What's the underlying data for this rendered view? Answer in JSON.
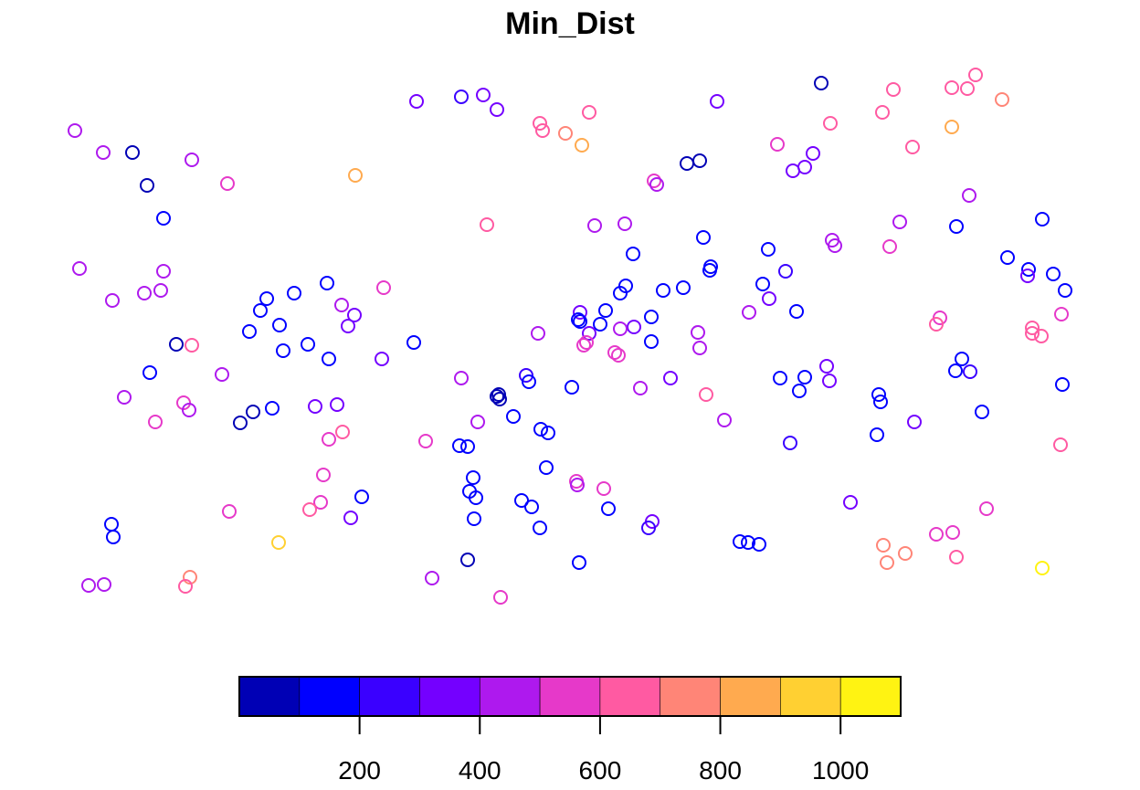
{
  "chart_data": {
    "type": "scatter",
    "title": "Min_Dist",
    "color_scale": {
      "breaks": [
        0,
        100,
        200,
        300,
        400,
        500,
        600,
        700,
        800,
        900,
        1000,
        1100
      ],
      "colors": [
        "#0000B5",
        "#0000FF",
        "#3A00FF",
        "#7400FF",
        "#AE19EE",
        "#E639C9",
        "#FF5AA2",
        "#FF8577",
        "#FFAA4F",
        "#FFD032",
        "#FFF312"
      ],
      "tick_values": [
        200,
        400,
        600,
        800,
        1000
      ],
      "tick_labels": [
        "200",
        "400",
        "600",
        "800",
        "1000"
      ],
      "legend_position": "bottom"
    },
    "points": [
      [
        82,
        143,
        480
      ],
      [
        113,
        167,
        420
      ],
      [
        145,
        167,
        60
      ],
      [
        161,
        203,
        80
      ],
      [
        210,
        175,
        470
      ],
      [
        249,
        201,
        500
      ],
      [
        179,
        239,
        150
      ],
      [
        389,
        192,
        880
      ],
      [
        456,
        111,
        380
      ],
      [
        505,
        106,
        230
      ],
      [
        529,
        104,
        360
      ],
      [
        544,
        120,
        300
      ],
      [
        591,
        135,
        620
      ],
      [
        594,
        143,
        610
      ],
      [
        645,
        123,
        620
      ],
      [
        619,
        146,
        760
      ],
      [
        637,
        159,
        840
      ],
      [
        533,
        246,
        600
      ],
      [
        651,
        247,
        450
      ],
      [
        684,
        245,
        460
      ],
      [
        785,
        111,
        330
      ],
      [
        752,
        179,
        80
      ],
      [
        766,
        176,
        60
      ],
      [
        716,
        198,
        520
      ],
      [
        719,
        202,
        460
      ],
      [
        693,
        278,
        180
      ],
      [
        770,
        260,
        160
      ],
      [
        778,
        292,
        140
      ],
      [
        777,
        296,
        110
      ],
      [
        748,
        315,
        150
      ],
      [
        726,
        318,
        150
      ],
      [
        685,
        313,
        150
      ],
      [
        679,
        321,
        120
      ],
      [
        663,
        340,
        150
      ],
      [
        635,
        342,
        350
      ],
      [
        633,
        350,
        140
      ],
      [
        635,
        352,
        180
      ],
      [
        657,
        355,
        190
      ],
      [
        645,
        365,
        330
      ],
      [
        642,
        375,
        520
      ],
      [
        639,
        378,
        500
      ],
      [
        589,
        365,
        460
      ],
      [
        694,
        358,
        350
      ],
      [
        679,
        360,
        400
      ],
      [
        713,
        347,
        180
      ],
      [
        713,
        374,
        180
      ],
      [
        764,
        364,
        400
      ],
      [
        766,
        381,
        440
      ],
      [
        673,
        386,
        560
      ],
      [
        677,
        389,
        540
      ],
      [
        734,
        414,
        370
      ],
      [
        701,
        425,
        450
      ],
      [
        773,
        432,
        640
      ],
      [
        793,
        460,
        480
      ],
      [
        576,
        411,
        220
      ],
      [
        579,
        418,
        160
      ],
      [
        505,
        414,
        410
      ],
      [
        626,
        424,
        180
      ],
      [
        546,
        432,
        70
      ],
      [
        544,
        434,
        80
      ],
      [
        547,
        437,
        60
      ],
      [
        562,
        456,
        130
      ],
      [
        523,
        462,
        410
      ],
      [
        592,
        470,
        160
      ],
      [
        600,
        474,
        150
      ],
      [
        466,
        483,
        570
      ],
      [
        503,
        488,
        140
      ],
      [
        512,
        489,
        170
      ],
      [
        598,
        512,
        160
      ],
      [
        518,
        523,
        130
      ],
      [
        514,
        538,
        120
      ],
      [
        521,
        545,
        110
      ],
      [
        571,
        548,
        150
      ],
      [
        582,
        555,
        180
      ],
      [
        631,
        527,
        550
      ],
      [
        632,
        531,
        490
      ],
      [
        661,
        535,
        510
      ],
      [
        666,
        557,
        150
      ],
      [
        714,
        571,
        300
      ],
      [
        710,
        578,
        250
      ],
      [
        591,
        578,
        190
      ],
      [
        519,
        568,
        170
      ],
      [
        634,
        616,
        120
      ],
      [
        512,
        613,
        80
      ],
      [
        473,
        633,
        430
      ],
      [
        548,
        654,
        510
      ],
      [
        851,
        158,
        580
      ],
      [
        909,
        135,
        600
      ],
      [
        868,
        187,
        390
      ],
      [
        881,
        183,
        360
      ],
      [
        890,
        168,
        390
      ],
      [
        899,
        91,
        70
      ],
      [
        841,
        273,
        170
      ],
      [
        860,
        297,
        200
      ],
      [
        835,
        311,
        190
      ],
      [
        842,
        327,
        300
      ],
      [
        820,
        342,
        480
      ],
      [
        872,
        341,
        150
      ],
      [
        911,
        263,
        410
      ],
      [
        914,
        269,
        470
      ],
      [
        974,
        270,
        530
      ],
      [
        985,
        243,
        490
      ],
      [
        966,
        123,
        640
      ],
      [
        978,
        98,
        670
      ],
      [
        999,
        161,
        600
      ],
      [
        1042,
        96,
        690
      ],
      [
        1059,
        97,
        680
      ],
      [
        1068,
        82,
        640
      ],
      [
        1097,
        109,
        790
      ],
      [
        1042,
        139,
        840
      ],
      [
        1061,
        214,
        410
      ],
      [
        1047,
        248,
        150
      ],
      [
        1141,
        240,
        130
      ],
      [
        1103,
        282,
        170
      ],
      [
        1126,
        295,
        140
      ],
      [
        1125,
        302,
        300
      ],
      [
        1153,
        300,
        170
      ],
      [
        1166,
        318,
        180
      ],
      [
        1162,
        344,
        500
      ],
      [
        1029,
        348,
        590
      ],
      [
        1025,
        355,
        610
      ],
      [
        1130,
        359,
        640
      ],
      [
        1130,
        365,
        690
      ],
      [
        1140,
        368,
        650
      ],
      [
        1053,
        393,
        180
      ],
      [
        1046,
        406,
        150
      ],
      [
        1062,
        407,
        270
      ],
      [
        905,
        401,
        330
      ],
      [
        908,
        417,
        380
      ],
      [
        881,
        413,
        160
      ],
      [
        854,
        414,
        130
      ],
      [
        875,
        428,
        140
      ],
      [
        865,
        485,
        270
      ],
      [
        962,
        432,
        160
      ],
      [
        964,
        440,
        180
      ],
      [
        1075,
        451,
        190
      ],
      [
        1163,
        421,
        130
      ],
      [
        1001,
        462,
        300
      ],
      [
        960,
        476,
        140
      ],
      [
        1161,
        487,
        620
      ],
      [
        931,
        550,
        390
      ],
      [
        1080,
        557,
        570
      ],
      [
        1025,
        585,
        590
      ],
      [
        1043,
        583,
        590
      ],
      [
        967,
        597,
        700
      ],
      [
        971,
        616,
        720
      ],
      [
        991,
        606,
        710
      ],
      [
        1047,
        610,
        650
      ],
      [
        1141,
        622,
        1010
      ],
      [
        810,
        593,
        140
      ],
      [
        819,
        594,
        130
      ],
      [
        831,
        596,
        120
      ],
      [
        87,
        294,
        480
      ],
      [
        123,
        329,
        400
      ],
      [
        179,
        297,
        430
      ],
      [
        158,
        321,
        440
      ],
      [
        176,
        318,
        450
      ],
      [
        193,
        377,
        80
      ],
      [
        210,
        378,
        620
      ],
      [
        164,
        408,
        140
      ],
      [
        136,
        435,
        400
      ],
      [
        243,
        410,
        420
      ],
      [
        201,
        441,
        500
      ],
      [
        207,
        449,
        490
      ],
      [
        170,
        462,
        520
      ],
      [
        292,
        327,
        100
      ],
      [
        285,
        340,
        110
      ],
      [
        273,
        363,
        110
      ],
      [
        322,
        321,
        140
      ],
      [
        306,
        356,
        180
      ],
      [
        310,
        384,
        190
      ],
      [
        337,
        377,
        190
      ],
      [
        358,
        310,
        170
      ],
      [
        374,
        334,
        410
      ],
      [
        388,
        345,
        310
      ],
      [
        381,
        357,
        310
      ],
      [
        360,
        393,
        110
      ],
      [
        420,
        315,
        500
      ],
      [
        418,
        393,
        330
      ],
      [
        453,
        375,
        120
      ],
      [
        263,
        463,
        60
      ],
      [
        277,
        451,
        80
      ],
      [
        298,
        447,
        120
      ],
      [
        345,
        445,
        360
      ],
      [
        369,
        443,
        350
      ],
      [
        375,
        473,
        620
      ],
      [
        360,
        481,
        590
      ],
      [
        396,
        544,
        160
      ],
      [
        354,
        520,
        530
      ],
      [
        351,
        550,
        570
      ],
      [
        339,
        558,
        640
      ],
      [
        384,
        567,
        300
      ],
      [
        251,
        560,
        520
      ],
      [
        305,
        594,
        980
      ],
      [
        122,
        574,
        180
      ],
      [
        124,
        588,
        190
      ],
      [
        208,
        632,
        710
      ],
      [
        203,
        642,
        680
      ],
      [
        97,
        641,
        470
      ],
      [
        114,
        640,
        450
      ]
    ]
  }
}
